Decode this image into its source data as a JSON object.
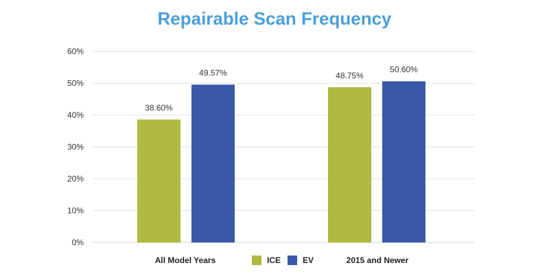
{
  "chart_data": {
    "type": "bar",
    "title": "Repairable Scan Frequency",
    "categories": [
      "All Model Years",
      "2015 and Newer"
    ],
    "series": [
      {
        "name": "ICE",
        "values": [
          38.6,
          48.75
        ],
        "labels": [
          "38.60%",
          "48.75%"
        ],
        "color": "#b0b940"
      },
      {
        "name": "EV",
        "values": [
          49.57,
          50.6
        ],
        "labels": [
          "49.57%",
          "50.60%"
        ],
        "color": "#3958a8"
      }
    ],
    "y_ticks": [
      "0%",
      "10%",
      "20%",
      "30%",
      "40%",
      "50%",
      "60%"
    ],
    "ylim": [
      0,
      60
    ],
    "grid": true,
    "legend_placement": "bottom-center",
    "title_color": "#4a9fd8"
  }
}
